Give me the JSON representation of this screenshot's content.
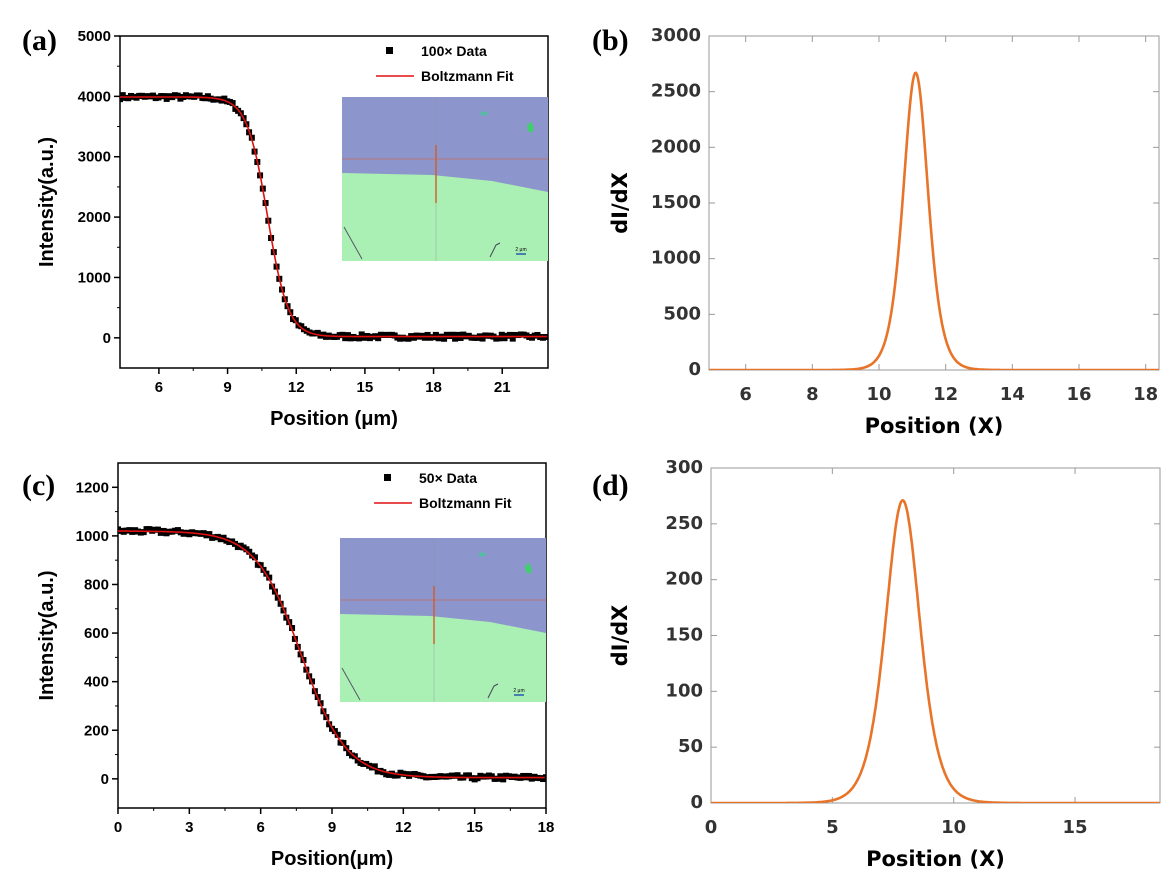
{
  "panel_labels": [
    "(a)",
    "(b)",
    "(c)",
    "(d)"
  ],
  "colors": {
    "data_marker": "#000000",
    "fit_line": "#e01010",
    "derivative_line": "#e8742a",
    "inset_top": "#8d96cc",
    "inset_bottom": "#aaf0b4",
    "inset_crosshair": "#d35a2a",
    "scale_bar": "#1f4ea8"
  },
  "chart_data": [
    {
      "id": "a",
      "type": "scatter",
      "xlabel": "Position (μm)",
      "ylabel": "Intensity(a.u.)",
      "xlim": [
        4.3,
        23.0
      ],
      "ylim": [
        -500,
        5000
      ],
      "xticks": [
        6,
        9,
        12,
        15,
        18,
        21
      ],
      "yticks": [
        0,
        1000,
        2000,
        3000,
        4000,
        5000
      ],
      "legend": {
        "placement": "top-right",
        "entries": [
          "100× Data",
          "Boltzmann Fit"
        ]
      },
      "fit": {
        "model": "Boltzmann",
        "A1": 3990,
        "A2": 20,
        "x0": 10.75,
        "dx": 0.45
      },
      "series": [
        {
          "name": "100× Data",
          "kind": "scatter",
          "x_range": [
            4.3,
            23.0
          ],
          "step": 0.12
        },
        {
          "name": "Boltzmann Fit",
          "kind": "line"
        }
      ],
      "inset": {
        "description_free": true,
        "scale_bar_label": "2 μm"
      }
    },
    {
      "id": "b",
      "type": "line",
      "xlabel": "Position (X)",
      "ylabel": "dI/dX",
      "xlim": [
        4.9,
        18.4
      ],
      "ylim": [
        0,
        3000
      ],
      "xticks": [
        6,
        8,
        10,
        12,
        14,
        16,
        18
      ],
      "yticks": [
        0,
        500,
        1000,
        1500,
        2000,
        2500,
        3000
      ],
      "curve": {
        "peak_x": 11.1,
        "peak_y": 2670,
        "width": 0.5
      }
    },
    {
      "id": "c",
      "type": "scatter",
      "xlabel": "Position(μm)",
      "ylabel": "Intensity(a.u.)",
      "xlim": [
        0,
        18
      ],
      "ylim": [
        -120,
        1300
      ],
      "xticks": [
        0,
        3,
        6,
        9,
        12,
        15,
        18
      ],
      "yticks": [
        0,
        200,
        400,
        600,
        800,
        1000,
        1200
      ],
      "legend": {
        "placement": "top-right",
        "entries": [
          "50× Data",
          "Boltzmann Fit"
        ]
      },
      "fit": {
        "model": "Boltzmann",
        "A1": 1020,
        "A2": 5,
        "x0": 7.7,
        "dx": 0.95
      },
      "series": [
        {
          "name": "50× Data",
          "kind": "scatter",
          "x_range": [
            0,
            18
          ],
          "step": 0.12
        },
        {
          "name": "Boltzmann Fit",
          "kind": "line"
        }
      ],
      "inset": {
        "scale_bar_label": "2 μm"
      }
    },
    {
      "id": "d",
      "type": "line",
      "xlabel": "Position (X)",
      "ylabel": "dI/dX",
      "xlim": [
        0,
        18.5
      ],
      "ylim": [
        0,
        300
      ],
      "xticks": [
        0,
        5,
        10,
        15
      ],
      "yticks": [
        0,
        50,
        100,
        150,
        200,
        250,
        300
      ],
      "curve": {
        "peak_x": 7.9,
        "peak_y": 271,
        "width": 0.95
      }
    }
  ]
}
